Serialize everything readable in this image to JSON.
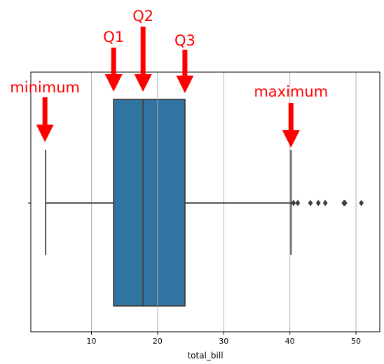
{
  "chart_data": {
    "type": "box",
    "xlabel": "total_bill",
    "xlim": [
      0.83,
      53.6
    ],
    "xticks": [
      10,
      20,
      30,
      40,
      50
    ],
    "xtick_labels": [
      "10",
      "20",
      "30",
      "40",
      "50"
    ],
    "grid": "vertical",
    "box": {
      "whisker_low": 3.07,
      "q1": 13.35,
      "median": 17.8,
      "q3": 24.13,
      "whisker_high": 40.17,
      "fill_color": "#3274a1",
      "line_color": "#3d3d3d"
    },
    "outliers": [
      40.55,
      41.19,
      43.11,
      44.3,
      45.35,
      48.17,
      48.27,
      48.33,
      50.81
    ],
    "annotations": [
      {
        "label": "minimum",
        "value": 3.07
      },
      {
        "label": "Q1",
        "value": 13.35
      },
      {
        "label": "Q2",
        "value": 17.8
      },
      {
        "label": "Q3",
        "value": 24.13
      },
      {
        "label": "maximum",
        "value": 40.17
      }
    ],
    "annotation_color": "#ff0000"
  }
}
